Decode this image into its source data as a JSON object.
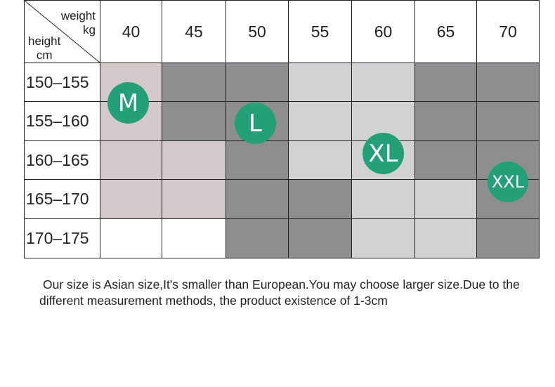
{
  "table": {
    "corner": {
      "weight_label": "weight",
      "weight_unit": "kg",
      "height_label": "height",
      "height_unit": "cm"
    },
    "columns": [
      "40",
      "45",
      "50",
      "55",
      "60",
      "65",
      "70"
    ],
    "rows": [
      "150–155",
      "155–160",
      "160–165",
      "165–170",
      "170–175"
    ],
    "cell_colors": {
      "pink": "#d3c8ca",
      "dark_gray": "#8e8d90",
      "light_gray": "#d2d1d3",
      "white": "#ffffff"
    },
    "cell_fill_matrix": [
      [
        "pink",
        "dark_gray",
        "dark_gray",
        "light_gray",
        "light_gray",
        "dark_gray",
        "dark_gray"
      ],
      [
        "pink",
        "dark_gray",
        "dark_gray",
        "light_gray",
        "light_gray",
        "dark_gray",
        "dark_gray"
      ],
      [
        "pink",
        "pink",
        "dark_gray",
        "light_gray",
        "light_gray",
        "dark_gray",
        "dark_gray"
      ],
      [
        "pink",
        "pink",
        "dark_gray",
        "dark_gray",
        "light_gray",
        "light_gray",
        "dark_gray"
      ],
      [
        "white",
        "white",
        "dark_gray",
        "dark_gray",
        "light_gray",
        "light_gray",
        "dark_gray"
      ]
    ]
  },
  "size_badges": {
    "color": "#23a078",
    "m": "M",
    "l": "L",
    "xl": "XL",
    "xxl": "XXL"
  },
  "note": {
    "line1": "Our size is Asian size,It's smaller than European.You may choose larger size.Due to the",
    "line2": "different measurement methods, the product existence of 1-3cm"
  }
}
